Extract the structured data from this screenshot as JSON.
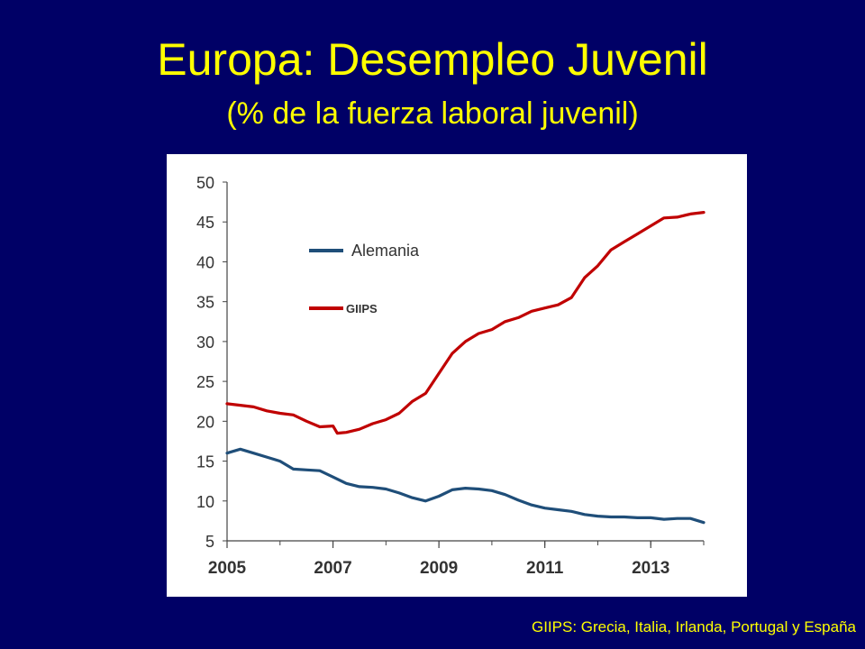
{
  "slide": {
    "title": "Europa: Desempleo Juvenil",
    "subtitle": "(% de la fuerza laboral juvenil)",
    "footnote": "GIIPS: Grecia, Italia, Irlanda, Portugal y España",
    "background_color": "#000066",
    "text_color": "#ffff00"
  },
  "chart_data": {
    "type": "line",
    "title": "",
    "xlabel": "",
    "ylabel": "",
    "xlim": [
      2005,
      2014
    ],
    "ylim": [
      5,
      50
    ],
    "y_ticks": [
      5,
      10,
      15,
      20,
      25,
      30,
      35,
      40,
      45,
      50
    ],
    "x_ticks": [
      2005,
      2007,
      2009,
      2011,
      2013
    ],
    "x_tick_labels": [
      "2005",
      "2007",
      "2009",
      "2011",
      "2013"
    ],
    "y_tick_labels": [
      "5",
      "10",
      "15",
      "20",
      "25",
      "30",
      "35",
      "40",
      "45",
      "50"
    ],
    "grid": false,
    "legend_position": "top-left",
    "series": [
      {
        "name": "Alemania",
        "color": "#1f4e79",
        "x": [
          2005.0,
          2005.25,
          2005.5,
          2005.75,
          2006.0,
          2006.25,
          2006.5,
          2006.75,
          2007.0,
          2007.25,
          2007.5,
          2007.75,
          2008.0,
          2008.25,
          2008.5,
          2008.75,
          2009.0,
          2009.25,
          2009.5,
          2009.75,
          2010.0,
          2010.25,
          2010.5,
          2010.75,
          2011.0,
          2011.25,
          2011.5,
          2011.75,
          2012.0,
          2012.25,
          2012.5,
          2012.75,
          2013.0,
          2013.25,
          2013.5,
          2013.75,
          2014.0
        ],
        "values": [
          16.0,
          16.5,
          16.0,
          15.5,
          15.0,
          14.0,
          13.9,
          13.8,
          13.0,
          12.2,
          11.8,
          11.7,
          11.5,
          11.0,
          10.4,
          10.0,
          10.6,
          11.4,
          11.6,
          11.5,
          11.3,
          10.8,
          10.1,
          9.5,
          9.1,
          8.9,
          8.7,
          8.3,
          8.1,
          8.0,
          8.0,
          7.9,
          7.9,
          7.7,
          7.8,
          7.8,
          7.3
        ]
      },
      {
        "name": "GIIPS",
        "color": "#c00000",
        "x": [
          2005.0,
          2005.25,
          2005.5,
          2005.75,
          2006.0,
          2006.25,
          2006.5,
          2006.75,
          2007.0,
          2007.08,
          2007.25,
          2007.5,
          2007.75,
          2008.0,
          2008.25,
          2008.5,
          2008.75,
          2009.0,
          2009.25,
          2009.5,
          2009.75,
          2010.0,
          2010.25,
          2010.5,
          2010.75,
          2011.0,
          2011.25,
          2011.5,
          2011.75,
          2012.0,
          2012.25,
          2012.5,
          2012.75,
          2013.0,
          2013.25,
          2013.5,
          2013.75,
          2014.0
        ],
        "values": [
          22.2,
          22.0,
          21.8,
          21.3,
          21.0,
          20.8,
          20.0,
          19.3,
          19.4,
          18.5,
          18.6,
          19.0,
          19.7,
          20.2,
          21.0,
          22.5,
          23.5,
          26.0,
          28.5,
          30.0,
          31.0,
          31.5,
          32.5,
          33.0,
          33.8,
          34.2,
          34.6,
          35.5,
          38.0,
          39.5,
          41.5,
          42.5,
          43.5,
          44.5,
          45.5,
          45.6,
          46.0,
          46.2
        ]
      }
    ]
  }
}
